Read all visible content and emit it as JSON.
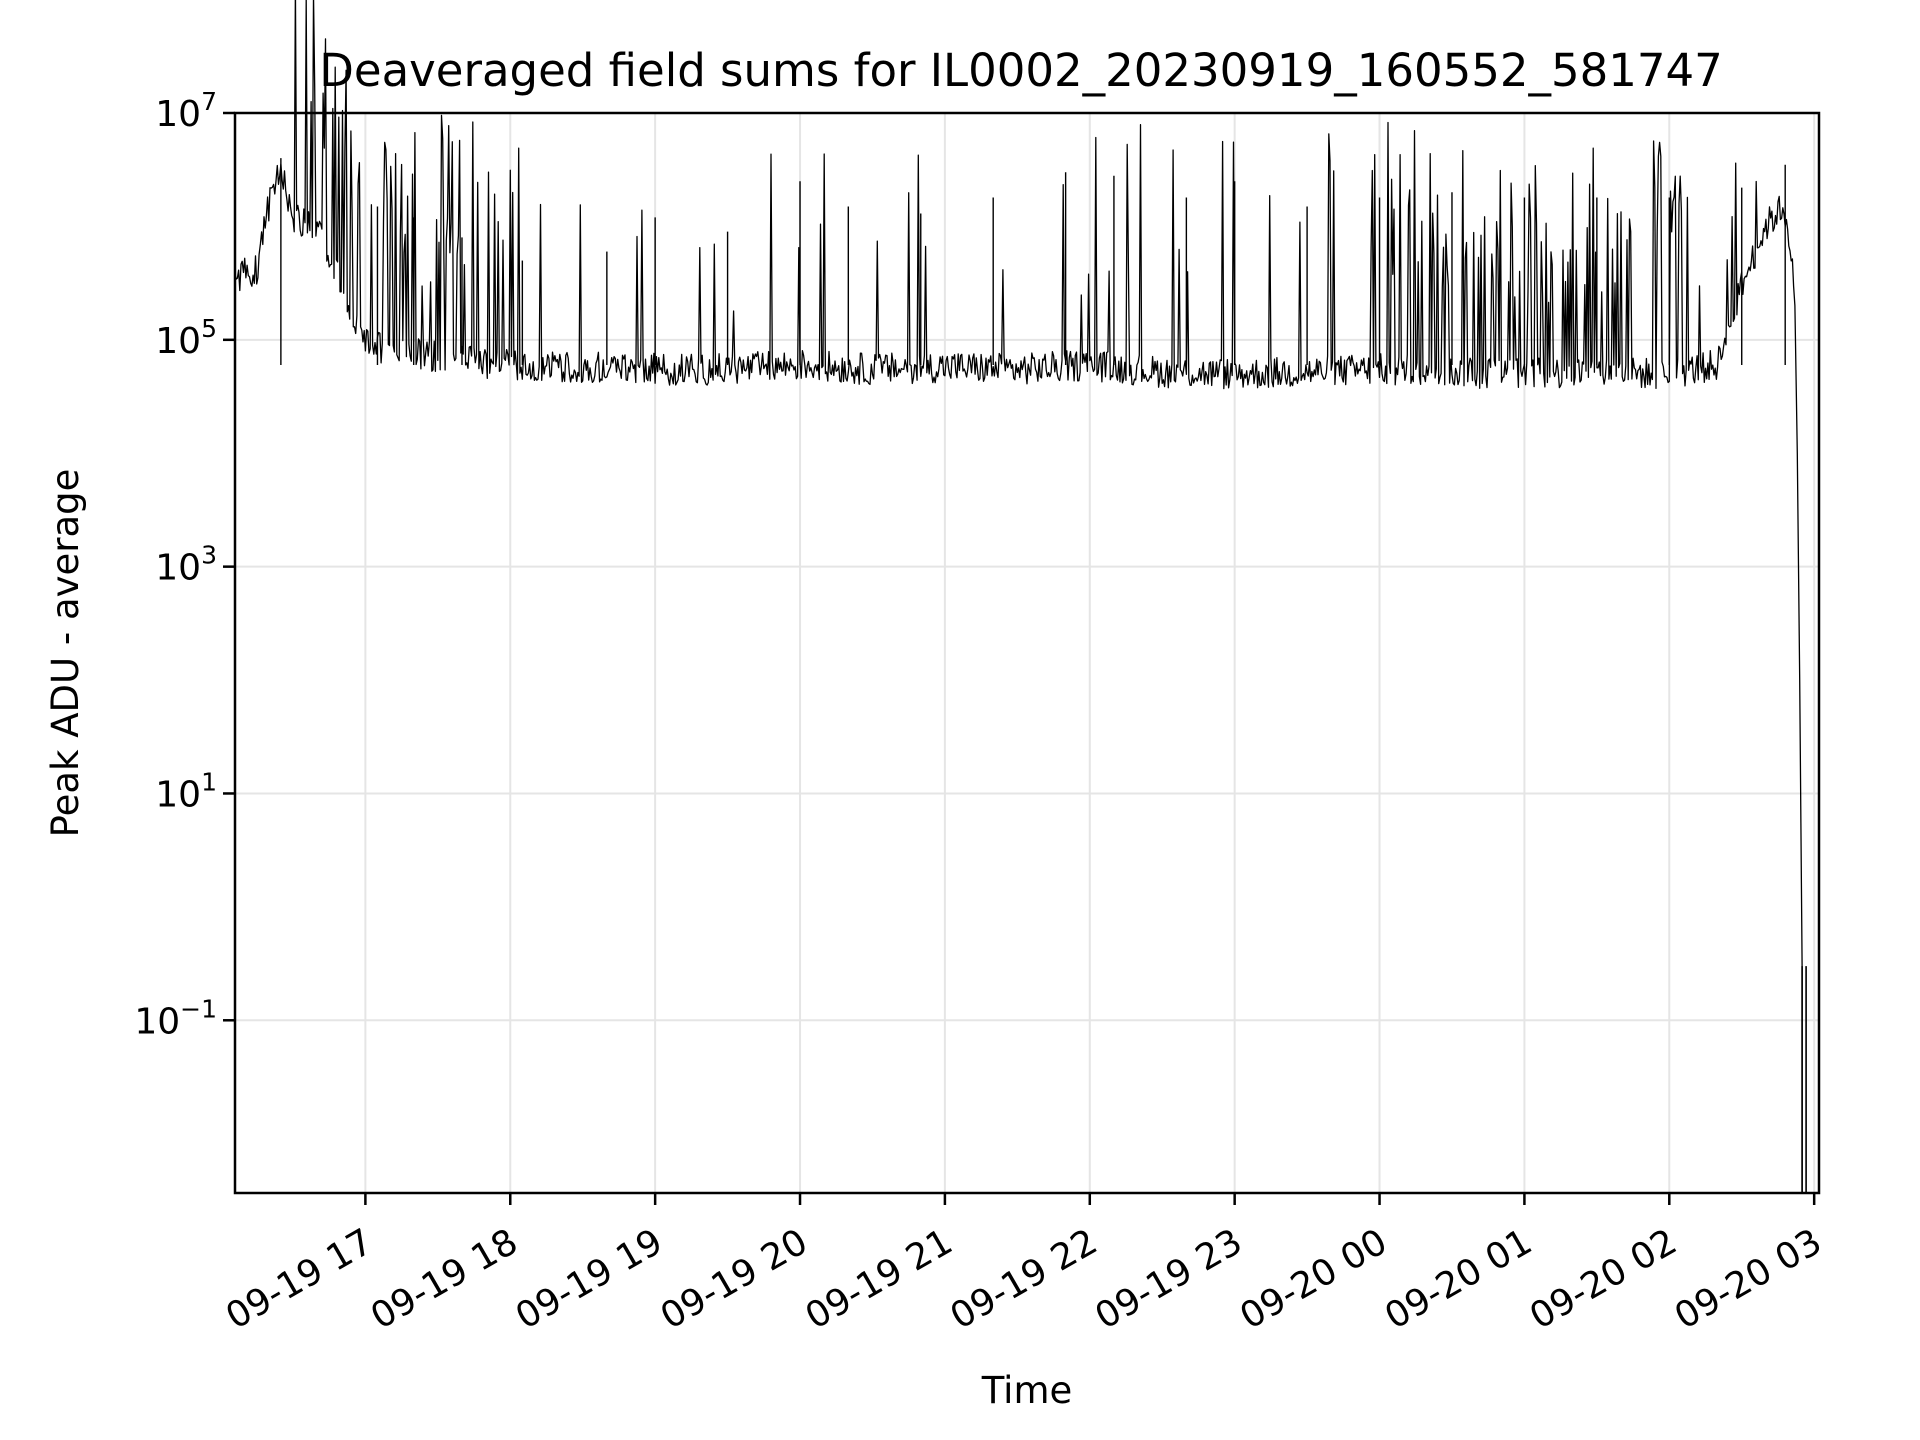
{
  "chart_data": {
    "type": "line",
    "title": "Deaveraged field sums for IL0002_20230919_160552_581747",
    "xlabel": "Time",
    "ylabel": "Peak ADU - average",
    "yscale": "log",
    "ylim": [
      0.003,
      10000000
    ],
    "xlim": [
      "2023-09-19 16:06",
      "2023-09-20 03:02"
    ],
    "grid": true,
    "line_color": "#000000",
    "grid_color": "#e5e5e5",
    "x_ticks": [
      {
        "value": "2023-09-19 17:00",
        "label": "09-19 17"
      },
      {
        "value": "2023-09-19 18:00",
        "label": "09-19 18"
      },
      {
        "value": "2023-09-19 19:00",
        "label": "09-19 19"
      },
      {
        "value": "2023-09-19 20:00",
        "label": "09-19 20"
      },
      {
        "value": "2023-09-19 21:00",
        "label": "09-19 21"
      },
      {
        "value": "2023-09-19 22:00",
        "label": "09-19 22"
      },
      {
        "value": "2023-09-19 23:00",
        "label": "09-19 23"
      },
      {
        "value": "2023-09-20 00:00",
        "label": "09-20 00"
      },
      {
        "value": "2023-09-20 01:00",
        "label": "09-20 01"
      },
      {
        "value": "2023-09-20 02:00",
        "label": "09-20 02"
      },
      {
        "value": "2023-09-20 03:00",
        "label": "09-20 03"
      }
    ],
    "y_ticks": [
      {
        "value": 10000000,
        "base": "10",
        "exp": "7"
      },
      {
        "value": 100000,
        "base": "10",
        "exp": "5"
      },
      {
        "value": 1000,
        "base": "10",
        "exp": "3"
      },
      {
        "value": 10,
        "base": "10",
        "exp": "1"
      },
      {
        "value": 0.1,
        "base": "10",
        "exp": "−1"
      }
    ],
    "series": [
      {
        "points": [
          [
            "2023-09-19 16:06",
            350000
          ],
          [
            "2023-09-19 16:15",
            420000
          ],
          [
            "2023-09-19 16:20",
            1500000
          ],
          [
            "2023-09-19 16:25",
            3500000
          ],
          [
            "2023-09-19 16:30",
            1200000
          ],
          [
            "2023-09-19 16:40",
            900000
          ],
          [
            "2023-09-19 16:50",
            300000
          ],
          [
            "2023-09-19 17:00",
            90000
          ],
          [
            "2023-09-19 17:15",
            80000
          ],
          [
            "2023-09-19 17:30",
            70000
          ],
          [
            "2023-09-19 17:45",
            65000
          ],
          [
            "2023-09-19 18:00",
            60000
          ],
          [
            "2023-09-19 18:30",
            58000
          ],
          [
            "2023-09-19 19:00",
            55000
          ],
          [
            "2023-09-19 19:30",
            55000
          ],
          [
            "2023-09-19 20:00",
            60000
          ],
          [
            "2023-09-19 20:30",
            55000
          ],
          [
            "2023-09-19 21:00",
            58000
          ],
          [
            "2023-09-19 21:30",
            55000
          ],
          [
            "2023-09-19 22:00",
            60000
          ],
          [
            "2023-09-19 22:30",
            52000
          ],
          [
            "2023-09-19 23:00",
            50000
          ],
          [
            "2023-09-19 23:30",
            52000
          ],
          [
            "2023-09-20 00:00",
            55000
          ],
          [
            "2023-09-20 00:30",
            52000
          ],
          [
            "2023-09-20 01:00",
            50000
          ],
          [
            "2023-09-20 01:30",
            52000
          ],
          [
            "2023-09-20 02:00",
            50000
          ],
          [
            "2023-09-20 02:20",
            60000
          ],
          [
            "2023-09-20 02:30",
            300000
          ],
          [
            "2023-09-20 02:40",
            1000000
          ],
          [
            "2023-09-20 02:47",
            1500000
          ],
          [
            "2023-09-20 02:50",
            800000
          ],
          [
            "2023-09-20 02:52",
            200000
          ],
          [
            "2023-09-20 02:53",
            10000
          ],
          [
            "2023-09-20 02:54",
            100
          ],
          [
            "2023-09-20 02:55",
            0.3
          ],
          [
            "2023-09-20 02:55",
            0.003
          ]
        ],
        "peaks": [
          [
            "2023-09-19 16:25",
            4000000
          ],
          [
            "2023-09-19 17:05",
            1500000
          ],
          [
            "2023-09-19 17:20",
            1200000
          ],
          [
            "2023-09-19 17:40",
            800000
          ],
          [
            "2023-09-19 18:05",
            500000
          ],
          [
            "2023-09-19 18:40",
            600000
          ],
          [
            "2023-09-19 19:00",
            1200000
          ],
          [
            "2023-09-19 19:30",
            900000
          ],
          [
            "2023-09-19 20:00",
            2500000
          ],
          [
            "2023-09-19 20:20",
            1500000
          ],
          [
            "2023-09-19 20:50",
            1300000
          ],
          [
            "2023-09-19 21:20",
            1800000
          ],
          [
            "2023-09-19 21:50",
            3000000
          ],
          [
            "2023-09-19 22:10",
            2800000
          ],
          [
            "2023-09-19 22:40",
            1800000
          ],
          [
            "2023-09-19 23:00",
            2500000
          ],
          [
            "2023-09-19 23:30",
            1500000
          ],
          [
            "2023-09-20 00:00",
            1800000
          ],
          [
            "2023-09-20 00:30",
            2000000
          ],
          [
            "2023-09-20 01:00",
            1800000
          ],
          [
            "2023-09-20 01:30",
            1800000
          ],
          [
            "2023-09-20 02:00",
            1800000
          ],
          [
            "2023-09-20 02:30",
            2200000
          ],
          [
            "2023-09-20 02:48",
            3500000
          ]
        ]
      }
    ]
  }
}
